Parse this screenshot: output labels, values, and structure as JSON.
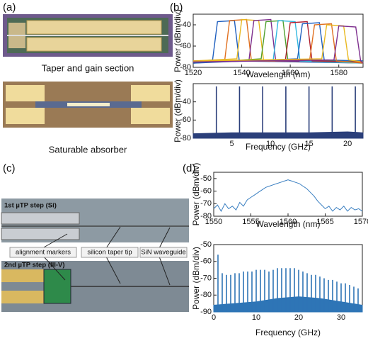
{
  "panel_labels": [
    "(a)",
    "(b)",
    "(c)",
    "(d)"
  ],
  "captions": [
    "Taper and gain section",
    "Saturable absorber"
  ],
  "annotations": {
    "step1": "1st µTP step (Si)",
    "markers": "alignment markers",
    "tip": "silicon taper tip",
    "sin": "SiN waveguide",
    "step2": "2nd µTP step (III-V)"
  },
  "chart_data": [
    {
      "type": "multi-line",
      "xlabel": "Wavelength (nm)",
      "ylabel": "Power (dBm/div)",
      "xlim": [
        1520,
        1590
      ],
      "xticks": [
        1520,
        1540,
        1560,
        1580
      ],
      "ylim": [
        -80,
        -30
      ],
      "yticks": [
        -80,
        -60,
        -40
      ],
      "series": [
        {
          "color": "#1f5fbf",
          "x": [
            1520,
            1528,
            1530,
            1537,
            1539,
            1590
          ],
          "values": [
            -75,
            -73,
            -37,
            -36,
            -74,
            -76
          ]
        },
        {
          "color": "#e07020",
          "x": [
            1520,
            1533,
            1535,
            1542,
            1544,
            1590
          ],
          "values": [
            -76,
            -73,
            -36,
            -35,
            -74,
            -75
          ]
        },
        {
          "color": "#e8b820",
          "x": [
            1520,
            1538,
            1540,
            1547,
            1549,
            1590
          ],
          "values": [
            -74,
            -72,
            -35,
            -36,
            -73,
            -76
          ]
        },
        {
          "color": "#7e2f8e",
          "x": [
            1520,
            1543,
            1545,
            1552,
            1554,
            1590
          ],
          "values": [
            -75,
            -73,
            -36,
            -35,
            -74,
            -75
          ]
        },
        {
          "color": "#50a030",
          "x": [
            1520,
            1548,
            1550,
            1557,
            1559,
            1590
          ],
          "values": [
            -76,
            -72,
            -37,
            -36,
            -73,
            -74
          ]
        },
        {
          "color": "#30b8e0",
          "x": [
            1520,
            1553,
            1555,
            1562,
            1564,
            1590
          ],
          "values": [
            -75,
            -73,
            -36,
            -37,
            -74,
            -76
          ]
        },
        {
          "color": "#b02030",
          "x": [
            1520,
            1558,
            1560,
            1567,
            1569,
            1590
          ],
          "values": [
            -74,
            -73,
            -38,
            -37,
            -74,
            -75
          ]
        },
        {
          "color": "#1f5fbf",
          "x": [
            1520,
            1563,
            1565,
            1572,
            1574,
            1590
          ],
          "values": [
            -76,
            -72,
            -39,
            -38,
            -73,
            -74
          ]
        },
        {
          "color": "#e07020",
          "x": [
            1520,
            1568,
            1570,
            1577,
            1579,
            1590
          ],
          "values": [
            -75,
            -73,
            -40,
            -39,
            -74,
            -76
          ]
        },
        {
          "color": "#e8b820",
          "x": [
            1520,
            1573,
            1575,
            1582,
            1584,
            1590
          ],
          "values": [
            -74,
            -72,
            -40,
            -41,
            -73,
            -75
          ]
        },
        {
          "color": "#7e2f8e",
          "x": [
            1520,
            1578,
            1580,
            1587,
            1589,
            1590
          ],
          "values": [
            -75,
            -73,
            -41,
            -42,
            -74,
            -76
          ]
        }
      ]
    },
    {
      "type": "spectrum",
      "xlabel": "Frequency (GHz)",
      "ylabel": "Power (dBm/div)",
      "color": "#2b3f7a",
      "xlim": [
        0,
        22
      ],
      "xticks": [
        5,
        10,
        15,
        20
      ],
      "ylim": [
        -80,
        -20
      ],
      "yticks": [
        -80,
        -60,
        -40
      ],
      "x": [
        3,
        6,
        9,
        12,
        15,
        18,
        21
      ],
      "values": [
        -23,
        -23,
        -23,
        -23,
        -23,
        -23,
        -23
      ],
      "floor": {
        "x": [
          0,
          5,
          10,
          15,
          20,
          22
        ],
        "values": [
          -75,
          -74,
          -74,
          -74,
          -73,
          -74
        ]
      }
    },
    {
      "type": "line",
      "xlabel": "Wavelength (nm)",
      "ylabel": "Power (dBm/div)",
      "color": "#3a7fc1",
      "xlim": [
        1550,
        1570
      ],
      "xticks": [
        1550,
        1555,
        1560,
        1565,
        1570
      ],
      "ylim": [
        -80,
        -45
      ],
      "yticks": [
        -80,
        -70,
        -60,
        -50
      ],
      "x": [
        1550,
        1550.5,
        1551,
        1551.5,
        1552,
        1552.5,
        1553,
        1553.5,
        1554,
        1554.5,
        1555,
        1555.5,
        1556,
        1556.5,
        1557,
        1557.5,
        1558,
        1558.5,
        1559,
        1559.5,
        1560,
        1560.5,
        1561,
        1561.5,
        1562,
        1562.5,
        1563,
        1563.5,
        1564,
        1564.5,
        1565,
        1565.5,
        1566,
        1566.5,
        1567,
        1567.5,
        1568,
        1568.5,
        1569,
        1569.5,
        1570
      ],
      "values": [
        -74,
        -71,
        -76,
        -70,
        -74,
        -72,
        -75,
        -69,
        -72,
        -67,
        -65,
        -63,
        -61,
        -59,
        -57,
        -56,
        -55,
        -54,
        -53,
        -52,
        -51,
        -52,
        -53,
        -54,
        -56,
        -58,
        -61,
        -64,
        -68,
        -71,
        -74,
        -72,
        -76,
        -73,
        -75,
        -72,
        -76,
        -73,
        -75,
        -74,
        -76
      ]
    },
    {
      "type": "spectrum",
      "xlabel": "Frequency (GHz)",
      "ylabel": "Power (dBm/div)",
      "color": "#2e75b6",
      "xlim": [
        0,
        35
      ],
      "xticks": [
        0,
        10,
        20,
        30
      ],
      "ylim": [
        -90,
        -50
      ],
      "yticks": [
        -90,
        -80,
        -70,
        -60,
        -50
      ],
      "x": [
        1,
        2,
        3,
        4,
        5,
        6,
        7,
        8,
        9,
        10,
        11,
        12,
        13,
        14,
        15,
        16,
        17,
        18,
        19,
        20,
        21,
        22,
        23,
        24,
        25,
        26,
        27,
        28,
        29,
        30,
        31,
        32,
        33,
        34
      ],
      "values": [
        -56,
        -67,
        -68,
        -68,
        -67,
        -67,
        -66,
        -66,
        -66,
        -65,
        -65,
        -65,
        -66,
        -65,
        -64,
        -64,
        -64,
        -64,
        -64,
        -65,
        -66,
        -67,
        -68,
        -68,
        -69,
        -70,
        -71,
        -71,
        -72,
        -73,
        -73,
        -74,
        -75,
        -76
      ],
      "floor": {
        "x": [
          0,
          5,
          10,
          15,
          20,
          25,
          30,
          35
        ],
        "values": [
          -86,
          -85,
          -84,
          -82,
          -81,
          -82,
          -84,
          -86
        ]
      }
    }
  ]
}
